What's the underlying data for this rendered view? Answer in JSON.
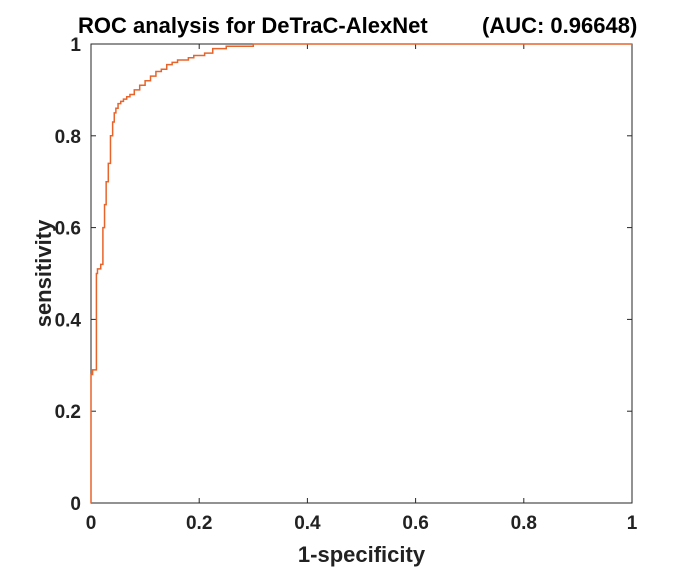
{
  "chart_data": {
    "type": "line",
    "title": "ROC analysis for DeTraC-AlexNet",
    "auc_label": "(AUC: 0.96648)",
    "xlabel": "1-specificity",
    "ylabel": "sensitivity",
    "xlim": [
      0,
      1
    ],
    "ylim": [
      0,
      1
    ],
    "xticks": [
      "0",
      "0.2",
      "0.4",
      "0.6",
      "0.8",
      "1"
    ],
    "yticks": [
      "0",
      "0.2",
      "0.4",
      "0.6",
      "0.8",
      "1"
    ],
    "grid": false,
    "legend": "none",
    "line_color": "#e8642a",
    "series": [
      {
        "x": [
          0,
          0,
          0.003,
          0.003,
          0.01,
          0.01,
          0.012,
          0.012,
          0.018,
          0.018,
          0.022,
          0.022,
          0.025,
          0.025,
          0.028,
          0.028,
          0.032,
          0.032,
          0.036,
          0.036,
          0.04,
          0.04,
          0.043,
          0.043,
          0.046,
          0.046,
          0.05,
          0.05,
          0.055,
          0.055,
          0.06,
          0.06,
          0.066,
          0.066,
          0.072,
          0.072,
          0.08,
          0.08,
          0.09,
          0.09,
          0.1,
          0.1,
          0.11,
          0.11,
          0.12,
          0.12,
          0.13,
          0.13,
          0.14,
          0.14,
          0.15,
          0.15,
          0.16,
          0.16,
          0.17,
          0.17,
          0.18,
          0.18,
          0.19,
          0.19,
          0.21,
          0.21,
          0.225,
          0.225,
          0.25,
          0.25,
          0.3,
          0.3,
          0.35,
          0.35,
          0.4,
          0.4,
          1
        ],
        "y": [
          0,
          0.28,
          0.28,
          0.29,
          0.29,
          0.5,
          0.5,
          0.51,
          0.51,
          0.52,
          0.52,
          0.6,
          0.6,
          0.65,
          0.65,
          0.7,
          0.7,
          0.74,
          0.74,
          0.8,
          0.8,
          0.83,
          0.83,
          0.85,
          0.85,
          0.86,
          0.86,
          0.87,
          0.87,
          0.875,
          0.875,
          0.88,
          0.88,
          0.885,
          0.885,
          0.89,
          0.89,
          0.9,
          0.9,
          0.91,
          0.91,
          0.92,
          0.92,
          0.93,
          0.93,
          0.94,
          0.94,
          0.945,
          0.945,
          0.955,
          0.955,
          0.96,
          0.96,
          0.965,
          0.965,
          0.965,
          0.965,
          0.97,
          0.97,
          0.975,
          0.975,
          0.98,
          0.98,
          0.99,
          0.99,
          0.995,
          0.995,
          1,
          1,
          1,
          1,
          1,
          1
        ]
      }
    ]
  }
}
